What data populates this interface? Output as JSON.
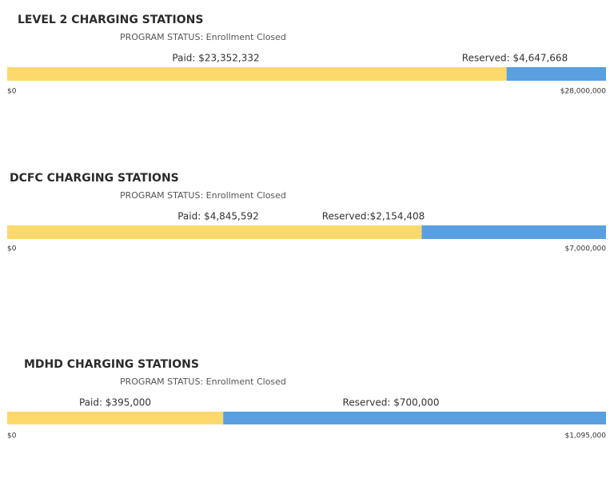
{
  "chart_data": [
    {
      "type": "stacked-hbar",
      "title": "LEVEL 2 CHARGING STATIONS",
      "subtitle": "PROGRAM STATUS: Enrollment Closed",
      "series": [
        {
          "color": "#fdd96c",
          "values": [
            23352332
          ],
          "value_labels": [
            "Paid: $23,352,332"
          ]
        },
        {
          "color": "#58a0e0",
          "values": [
            4647668
          ],
          "value_labels": [
            "Reserved: $4,647,668"
          ]
        }
      ],
      "xlim": [
        0,
        28000000
      ],
      "xticks": [
        {
          "value": 0,
          "label": "$0"
        },
        {
          "value": 28000000,
          "label": "$28,000,000"
        }
      ]
    },
    {
      "type": "stacked-hbar",
      "title": "DCFC CHARGING STATIONS",
      "subtitle": "PROGRAM STATUS: Enrollment Closed",
      "series": [
        {
          "color": "#fdd96c",
          "values": [
            4845592
          ],
          "value_labels": [
            "Paid: $4,845,592"
          ]
        },
        {
          "color": "#58a0e0",
          "values": [
            2154408
          ],
          "value_labels": [
            "Reserved:$2,154,408"
          ]
        }
      ],
      "xlim": [
        0,
        7000000
      ],
      "xticks": [
        {
          "value": 0,
          "label": "$0"
        },
        {
          "value": 7000000,
          "label": "$7,000,000"
        }
      ]
    },
    {
      "type": "stacked-hbar",
      "title": "MDHD CHARGING STATIONS",
      "subtitle": "PROGRAM STATUS: Enrollment Closed",
      "series": [
        {
          "color": "#fdd96c",
          "values": [
            395000
          ],
          "value_labels": [
            "Paid: $395,000"
          ]
        },
        {
          "color": "#58a0e0",
          "values": [
            700000
          ],
          "value_labels": [
            "Reserved: $700,000"
          ]
        }
      ],
      "xlim": [
        0,
        1095000
      ],
      "xticks": [
        {
          "value": 0,
          "label": "$0"
        },
        {
          "value": 1095000,
          "label": "$1,095,000"
        }
      ]
    }
  ]
}
